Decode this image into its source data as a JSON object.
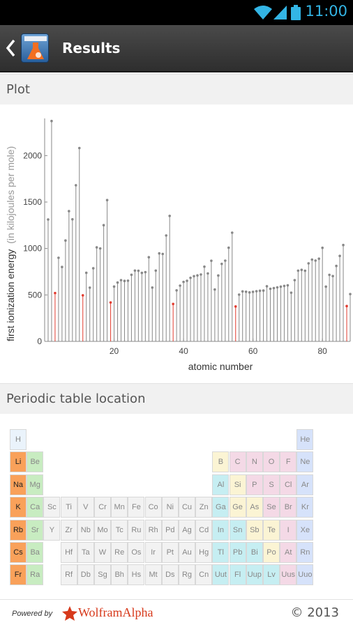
{
  "status_bar": {
    "time": "11:00"
  },
  "action_bar": {
    "title": "Results"
  },
  "sections": {
    "plot_title": "Plot",
    "periodic_title": "Periodic table location"
  },
  "colors": {
    "highlight_stem": "#e23b2f",
    "normal_stem": "#888888",
    "alkali": "#f9a15a",
    "alkaline_earth": "#c8ecc1",
    "transition": "#f2f2f2",
    "post_transition": "#c6eef2",
    "metalloid": "#fbf4d4",
    "nonmetal": "#f4d9e6",
    "noble_gas": "#d6e2fa",
    "hydrogen": "#eaf3fb"
  },
  "chart_data": {
    "type": "scatter",
    "xlabel": "atomic number",
    "ylabel": "first ionization energy",
    "ylabel_unit": "(in kilojoules per mole)",
    "xlim": [
      0,
      88
    ],
    "ylim": [
      0,
      2400
    ],
    "x_ticks": [
      "20",
      "40",
      "60",
      "80"
    ],
    "y_ticks": [
      "0",
      "500",
      "1000",
      "1500",
      "2000"
    ],
    "highlighted_x": [
      3,
      11,
      19,
      37,
      55,
      87
    ],
    "x": [
      1,
      2,
      3,
      4,
      5,
      6,
      7,
      8,
      9,
      10,
      11,
      12,
      13,
      14,
      15,
      16,
      17,
      18,
      19,
      20,
      21,
      22,
      23,
      24,
      25,
      26,
      27,
      28,
      29,
      30,
      31,
      32,
      33,
      34,
      35,
      36,
      37,
      38,
      39,
      40,
      41,
      42,
      43,
      44,
      45,
      46,
      47,
      48,
      49,
      50,
      51,
      52,
      53,
      54,
      55,
      56,
      57,
      58,
      59,
      60,
      61,
      62,
      63,
      64,
      65,
      66,
      67,
      68,
      69,
      70,
      71,
      72,
      73,
      74,
      75,
      76,
      77,
      78,
      79,
      80,
      81,
      82,
      83,
      84,
      85,
      86,
      87,
      88
    ],
    "values": [
      1312,
      2372,
      520,
      900,
      801,
      1086,
      1402,
      1314,
      1681,
      2081,
      496,
      738,
      578,
      787,
      1012,
      1000,
      1251,
      1521,
      419,
      590,
      633,
      659,
      651,
      653,
      717,
      762,
      760,
      737,
      745,
      906,
      579,
      762,
      947,
      941,
      1140,
      1351,
      403,
      549,
      600,
      640,
      652,
      684,
      702,
      710,
      720,
      804,
      731,
      868,
      558,
      709,
      834,
      869,
      1008,
      1170,
      376,
      503,
      538,
      534,
      527,
      533,
      540,
      545,
      547,
      593,
      566,
      573,
      581,
      589,
      597,
      603,
      524,
      659,
      761,
      770,
      760,
      840,
      880,
      870,
      890,
      1007,
      589,
      716,
      703,
      812,
      920,
      1037,
      380,
      509
    ]
  },
  "periodic_table": {
    "rows": [
      [
        "H",
        "",
        "",
        "",
        "",
        "",
        "",
        "",
        "",
        "",
        "",
        "",
        "",
        "",
        "",
        "",
        "",
        "He"
      ],
      [
        "Li",
        "Be",
        "",
        "",
        "",
        "",
        "",
        "",
        "",
        "",
        "",
        "",
        "B",
        "C",
        "N",
        "O",
        "F",
        "Ne"
      ],
      [
        "Na",
        "Mg",
        "",
        "",
        "",
        "",
        "",
        "",
        "",
        "",
        "",
        "",
        "Al",
        "Si",
        "P",
        "S",
        "Cl",
        "Ar"
      ],
      [
        "K",
        "Ca",
        "Sc",
        "Ti",
        "V",
        "Cr",
        "Mn",
        "Fe",
        "Co",
        "Ni",
        "Cu",
        "Zn",
        "Ga",
        "Ge",
        "As",
        "Se",
        "Br",
        "Kr"
      ],
      [
        "Rb",
        "Sr",
        "Y",
        "Zr",
        "Nb",
        "Mo",
        "Tc",
        "Ru",
        "Rh",
        "Pd",
        "Ag",
        "Cd",
        "In",
        "Sn",
        "Sb",
        "Te",
        "I",
        "Xe"
      ],
      [
        "Cs",
        "Ba",
        "",
        "Hf",
        "Ta",
        "W",
        "Re",
        "Os",
        "Ir",
        "Pt",
        "Au",
        "Hg",
        "Tl",
        "Pb",
        "Bi",
        "Po",
        "At",
        "Rn"
      ],
      [
        "Fr",
        "Ra",
        "",
        "Rf",
        "Db",
        "Sg",
        "Bh",
        "Hs",
        "Mt",
        "Ds",
        "Rg",
        "Cn",
        "Uut",
        "Fl",
        "Uup",
        "Lv",
        "Uus",
        "Uuo"
      ]
    ]
  },
  "footer": {
    "powered_by": "Powered by",
    "brand": "WolframAlpha",
    "copyright": "© 2013"
  }
}
